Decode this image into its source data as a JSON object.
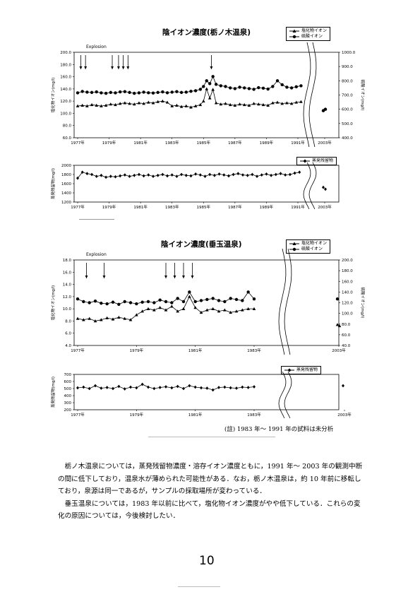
{
  "chart1": {
    "title": "陰イオン濃度(栃ノ木温泉)",
    "legend": [
      "塩化物イオン",
      "硫酸イオン"
    ],
    "annotation": "Explosion",
    "ylabel_left": "塩化物イオン(mg/l)",
    "ylabel_right": "硫酸イオン(mg/l)",
    "yticks_left": [
      "200.0",
      "180.0",
      "160.0",
      "140.0",
      "120.0",
      "100.0",
      "80.0",
      "60.0"
    ],
    "yticks_right": [
      "1000.0",
      "900.0",
      "800.0",
      "700.0",
      "600.0",
      "500.0",
      "400.0"
    ],
    "xticks": [
      "1977年",
      "1979年",
      "1981年",
      "1983年",
      "1985年",
      "1987年",
      "1989年",
      "1991年",
      "2003年"
    ]
  },
  "chart2": {
    "legend": [
      "蒸発残留物"
    ],
    "ylabel": "蒸発残留物(mg/l)",
    "yticks": [
      "2000",
      "1800",
      "1600",
      "1400",
      "1200"
    ],
    "xticks": [
      "1977年",
      "1979年",
      "1981年",
      "1983年",
      "1985年",
      "1987年",
      "1989年",
      "1991年",
      "2003年"
    ]
  },
  "chart3": {
    "title": "陰イオン濃度(垂玉温泉)",
    "legend": [
      "塩化物イオン",
      "硫酸イオン"
    ],
    "annotation": "Explosion",
    "ylabel_left": "塩化物イオン(mg/l)",
    "ylabel_right": "硫酸イオン(mg/l)",
    "yticks_left": [
      "18.0",
      "16.0",
      "14.0",
      "12.0",
      "10.0",
      "8.0",
      "6.0",
      "4.0"
    ],
    "yticks_right": [
      "200.0",
      "180.0",
      "160.0",
      "140.0",
      "120.0",
      "100.0",
      "80.0",
      "60.0",
      "40.0"
    ],
    "xticks": [
      "1977年",
      "1979年",
      "1981年",
      "1983年",
      "2003年"
    ]
  },
  "chart4": {
    "legend": [
      "蒸発残留物"
    ],
    "ylabel": "蒸発残留物(mg/l)",
    "yticks": [
      "700",
      "600",
      "500",
      "400",
      "300",
      "200"
    ],
    "xticks": [
      "1977年",
      "1979年",
      "1981年",
      "1983年",
      "2003年"
    ]
  },
  "note": "(註) 1983 年～ 1991 年の試料は未分析",
  "paragraphs": [
    "栃ノ木温泉については，蒸発残留物濃度・溶存イオン濃度ともに，1991 年～ 2003 年の観測中断の間に低下しており，温泉水が薄められた可能性がある．なお，栃ノ木温泉は，約 10 年前に移転しており，泉源は同一であるが，サンプルの採取場所が変わっている．",
    "垂玉温泉については，1983 年以前に比べて，塩化物イオン濃度がやや低下している．これらの変化の原因については，今後検討したい．"
  ],
  "page_number": "10",
  "chart_data": [
    {
      "type": "line",
      "title": "陰イオン濃度(栃ノ木温泉)",
      "xlabel": "",
      "ylabel": "塩化物イオン(mg/l)",
      "y2label": "硫酸イオン(mg/l)",
      "ylim": [
        60,
        200
      ],
      "y2lim": [
        400,
        1000
      ],
      "x_range": [
        1977,
        1991.5
      ],
      "series": [
        {
          "name": "塩化物イオン",
          "axis": "left",
          "x": [
            1977.0,
            1977.3,
            1977.6,
            1977.9,
            1978.2,
            1978.5,
            1978.8,
            1979.1,
            1979.4,
            1979.7,
            1980.0,
            1980.3,
            1980.6,
            1980.9,
            1981.2,
            1981.5,
            1981.8,
            1982.1,
            1982.4,
            1982.7,
            1983.0,
            1983.3,
            1983.6,
            1983.9,
            1984.2,
            1984.5,
            1984.8,
            1985.0,
            1985.2,
            1985.4,
            1985.6,
            1985.8,
            1986.1,
            1986.4,
            1986.7,
            1987.0,
            1987.3,
            1987.6,
            1987.9,
            1988.2,
            1988.5,
            1988.8,
            1989.1,
            1989.4,
            1989.7,
            1990.0,
            1990.3,
            1990.6,
            1990.9,
            1991.2
          ],
          "values": [
            112,
            113,
            112,
            114,
            113,
            112,
            113,
            115,
            114,
            116,
            117,
            116,
            115,
            117,
            116,
            118,
            117,
            119,
            120,
            118,
            112,
            113,
            111,
            112,
            110,
            112,
            114,
            120,
            140,
            125,
            139,
            117,
            115,
            116,
            114,
            113,
            115,
            114,
            113,
            116,
            115,
            114,
            113,
            117,
            118,
            116,
            117,
            116,
            118,
            119
          ]
        },
        {
          "name": "硫酸イオン",
          "axis": "right",
          "x": [
            1977.0,
            1977.3,
            1977.6,
            1977.9,
            1978.2,
            1978.5,
            1978.8,
            1979.1,
            1979.4,
            1979.7,
            1980.0,
            1980.3,
            1980.6,
            1980.9,
            1981.2,
            1981.5,
            1981.8,
            1982.1,
            1982.4,
            1982.7,
            1983.0,
            1983.3,
            1983.6,
            1983.9,
            1984.2,
            1984.5,
            1984.8,
            1985.0,
            1985.2,
            1985.4,
            1985.6,
            1985.8,
            1986.1,
            1986.4,
            1986.7,
            1987.0,
            1987.3,
            1987.6,
            1987.9,
            1988.2,
            1988.5,
            1988.8,
            1989.1,
            1989.4,
            1989.7,
            1990.0,
            1990.3,
            1990.6,
            1990.9,
            1991.2
          ],
          "values": [
            715,
            725,
            720,
            718,
            722,
            715,
            712,
            718,
            715,
            722,
            724,
            718,
            712,
            715,
            720,
            716,
            714,
            718,
            722,
            716,
            720,
            724,
            718,
            720,
            726,
            730,
            740,
            760,
            800,
            780,
            830,
            775,
            765,
            760,
            750,
            745,
            755,
            750,
            745,
            740,
            752,
            748,
            742,
            760,
            800,
            772,
            755,
            750,
            758,
            765
          ]
        }
      ],
      "points_2003": {
        "塩化物イオン": [
          105,
          107
        ],
        "硫酸イオン": [
          590,
          600
        ]
      }
    },
    {
      "type": "line",
      "title": "",
      "ylabel": "蒸発残留物(mg/l)",
      "ylim": [
        1200,
        2000
      ],
      "series": [
        {
          "name": "蒸発残留物",
          "x": [
            1977.0,
            1977.3,
            1977.6,
            1977.9,
            1978.2,
            1978.5,
            1978.8,
            1979.1,
            1979.4,
            1979.7,
            1980.0,
            1980.3,
            1980.6,
            1980.9,
            1981.2,
            1981.5,
            1981.8,
            1982.1,
            1982.4,
            1982.7,
            1983.0,
            1983.3,
            1983.6,
            1983.9,
            1984.2,
            1984.5,
            1984.8,
            1985.1,
            1985.4,
            1985.7,
            1986.0,
            1986.3,
            1986.6,
            1986.9,
            1987.2,
            1987.5,
            1987.8,
            1988.1,
            1988.4,
            1988.7,
            1989.0,
            1989.3,
            1989.6,
            1989.9,
            1990.2,
            1990.5,
            1990.8,
            1991.1
          ],
          "values": [
            1720,
            1850,
            1820,
            1800,
            1760,
            1780,
            1740,
            1760,
            1750,
            1770,
            1790,
            1760,
            1780,
            1800,
            1770,
            1790,
            1760,
            1780,
            1800,
            1770,
            1790,
            1760,
            1800,
            1780,
            1770,
            1810,
            1790,
            1760,
            1800,
            1780,
            1810,
            1790,
            1770,
            1800,
            1820,
            1790,
            1780,
            1800,
            1760,
            1790,
            1810,
            1780,
            1800,
            1820,
            1790,
            1800,
            1830,
            1850
          ]
        }
      ],
      "points_2003": {
        "蒸発残留物": [
          1520,
          1480
        ]
      }
    },
    {
      "type": "line",
      "title": "陰イオン濃度(垂玉温泉)",
      "ylabel": "塩化物イオン(mg/l)",
      "y2label": "硫酸イオン(mg/l)",
      "ylim": [
        4,
        18
      ],
      "y2lim": [
        40,
        200
      ],
      "series": [
        {
          "name": "塩化物イオン",
          "axis": "left",
          "x": [
            1977.0,
            1977.2,
            1977.4,
            1977.6,
            1977.8,
            1978.0,
            1978.2,
            1978.4,
            1978.6,
            1978.8,
            1979.0,
            1979.2,
            1979.4,
            1979.6,
            1979.8,
            1980.0,
            1980.2,
            1980.4,
            1980.6,
            1980.8,
            1981.0,
            1981.2,
            1981.4,
            1981.6,
            1981.8,
            1982.0,
            1982.2,
            1982.4,
            1982.6,
            1982.8,
            1983.0
          ],
          "values": [
            8.4,
            8.2,
            8.4,
            8.0,
            8.2,
            8.5,
            8.3,
            8.6,
            8.4,
            8.2,
            9.0,
            9.6,
            10.0,
            9.8,
            10.2,
            9.8,
            10.4,
            9.6,
            10.0,
            12.0,
            10.2,
            9.4,
            9.8,
            10.0,
            9.6,
            9.8,
            9.4,
            9.6,
            9.8,
            10.0,
            10.0
          ]
        },
        {
          "name": "硫酸イオン",
          "axis": "right",
          "x": [
            1977.0,
            1977.2,
            1977.4,
            1977.6,
            1977.8,
            1978.0,
            1978.2,
            1978.4,
            1978.6,
            1978.8,
            1979.0,
            1979.2,
            1979.4,
            1979.6,
            1979.8,
            1980.0,
            1980.2,
            1980.4,
            1980.6,
            1980.8,
            1981.0,
            1981.2,
            1981.4,
            1981.6,
            1981.8,
            1982.0,
            1982.2,
            1982.4,
            1982.6,
            1982.8,
            1983.0
          ],
          "values": [
            127,
            122,
            120,
            123,
            119,
            118,
            121,
            117,
            122,
            120,
            118,
            121,
            122,
            120,
            125,
            122,
            120,
            128,
            122,
            140,
            122,
            124,
            126,
            128,
            124,
            122,
            128,
            126,
            124,
            140,
            127
          ]
        }
      ],
      "points_2003": {
        "塩化物イオン": [
          7.4,
          7.2
        ],
        "硫酸イオン": [
          127
        ]
      }
    },
    {
      "type": "line",
      "title": "",
      "ylabel": "蒸発残留物(mg/l)",
      "ylim": [
        200,
        700
      ],
      "series": [
        {
          "name": "蒸発残留物",
          "x": [
            1977.0,
            1977.2,
            1977.4,
            1977.6,
            1977.8,
            1978.0,
            1978.2,
            1978.4,
            1978.6,
            1978.8,
            1979.0,
            1979.2,
            1979.4,
            1979.6,
            1979.8,
            1980.0,
            1980.2,
            1980.4,
            1980.6,
            1980.8,
            1981.0,
            1981.2,
            1981.4,
            1981.6,
            1981.8,
            1982.0,
            1982.2,
            1982.4,
            1982.6,
            1982.8,
            1983.0
          ],
          "values": [
            510,
            520,
            500,
            540,
            505,
            515,
            500,
            530,
            495,
            520,
            510,
            560,
            520,
            500,
            515,
            525,
            510,
            530,
            500,
            540,
            520,
            510,
            505,
            480,
            515,
            520,
            510,
            505,
            520,
            515,
            525
          ]
        }
      ],
      "points_2003": {
        "蒸発残留物": [
          540
        ]
      }
    }
  ]
}
